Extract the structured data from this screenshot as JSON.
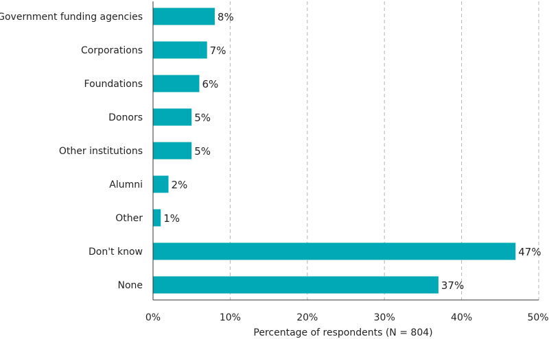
{
  "chart_data": {
    "type": "bar",
    "orientation": "horizontal",
    "categories": [
      "Government funding agencies",
      "Corporations",
      "Foundations",
      "Donors",
      "Other institutions",
      "Alumni",
      "Other",
      "Don't know",
      "None"
    ],
    "values": [
      8,
      7,
      6,
      5,
      5,
      2,
      1,
      47,
      37
    ],
    "value_labels": [
      "8%",
      "7%",
      "6%",
      "5%",
      "5%",
      "2%",
      "1%",
      "47%",
      "37%"
    ],
    "xlabel": "Percentage of respondents (N = 804)",
    "xlim": [
      0,
      50
    ],
    "xticks": [
      0,
      10,
      20,
      30,
      40,
      50
    ],
    "xtick_labels": [
      "0%",
      "10%",
      "20%",
      "30%",
      "40%",
      "50%"
    ],
    "grid": "vertical-dashed",
    "bar_color": "#00a9b5"
  }
}
